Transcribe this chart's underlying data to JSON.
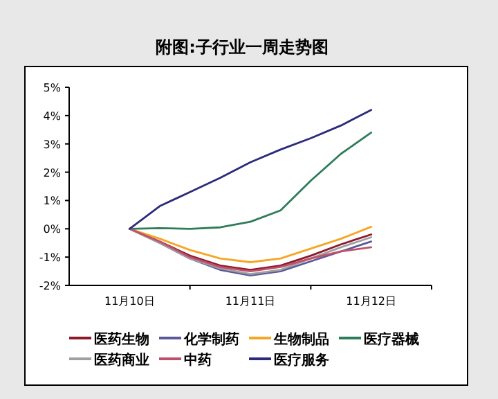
{
  "chart_data": {
    "type": "line",
    "title": "附图:子行业一周走势图",
    "categories": [
      "11月10日",
      null,
      null,
      null,
      "11月11日",
      null,
      null,
      null,
      "11月12日"
    ],
    "ylim": [
      -2,
      5
    ],
    "yticks": [
      {
        "value": -2,
        "label": "-2%"
      },
      {
        "value": -1,
        "label": "-1%"
      },
      {
        "value": 0,
        "label": "0%"
      },
      {
        "value": 1,
        "label": "1%"
      },
      {
        "value": 2,
        "label": "2%"
      },
      {
        "value": 3,
        "label": "3%"
      },
      {
        "value": 4,
        "label": "4%"
      },
      {
        "value": 5,
        "label": "5%"
      }
    ],
    "legend": "bottom",
    "series": [
      {
        "name": "医药生物",
        "color": "#8b1a2b",
        "values": [
          0,
          -0.45,
          -0.95,
          -1.3,
          -1.45,
          -1.3,
          -0.95,
          -0.55,
          -0.2
        ]
      },
      {
        "name": "化学制药",
        "color": "#5a5a9a",
        "values": [
          0,
          -0.5,
          -1.05,
          -1.45,
          -1.65,
          -1.5,
          -1.15,
          -0.8,
          -0.45
        ]
      },
      {
        "name": "生物制品",
        "color": "#f5a623",
        "values": [
          0,
          -0.35,
          -0.75,
          -1.05,
          -1.18,
          -1.05,
          -0.7,
          -0.35,
          0.07
        ]
      },
      {
        "name": "医疗器械",
        "color": "#2e7d5a",
        "values": [
          0,
          0.02,
          0,
          0.05,
          0.25,
          0.65,
          1.7,
          2.65,
          3.4
        ]
      },
      {
        "name": "医药商业",
        "color": "#a0a0a0",
        "values": [
          0,
          -0.5,
          -1.05,
          -1.4,
          -1.6,
          -1.45,
          -1.05,
          -0.65,
          -0.3
        ]
      },
      {
        "name": "中药",
        "color": "#c0506a",
        "values": [
          0,
          -0.45,
          -1.0,
          -1.35,
          -1.5,
          -1.35,
          -1.05,
          -0.8,
          -0.65
        ]
      },
      {
        "name": "医疗服务",
        "color": "#2b2b7a",
        "values": [
          0,
          0.8,
          1.3,
          1.8,
          2.35,
          2.8,
          3.2,
          3.65,
          4.2
        ]
      }
    ]
  }
}
